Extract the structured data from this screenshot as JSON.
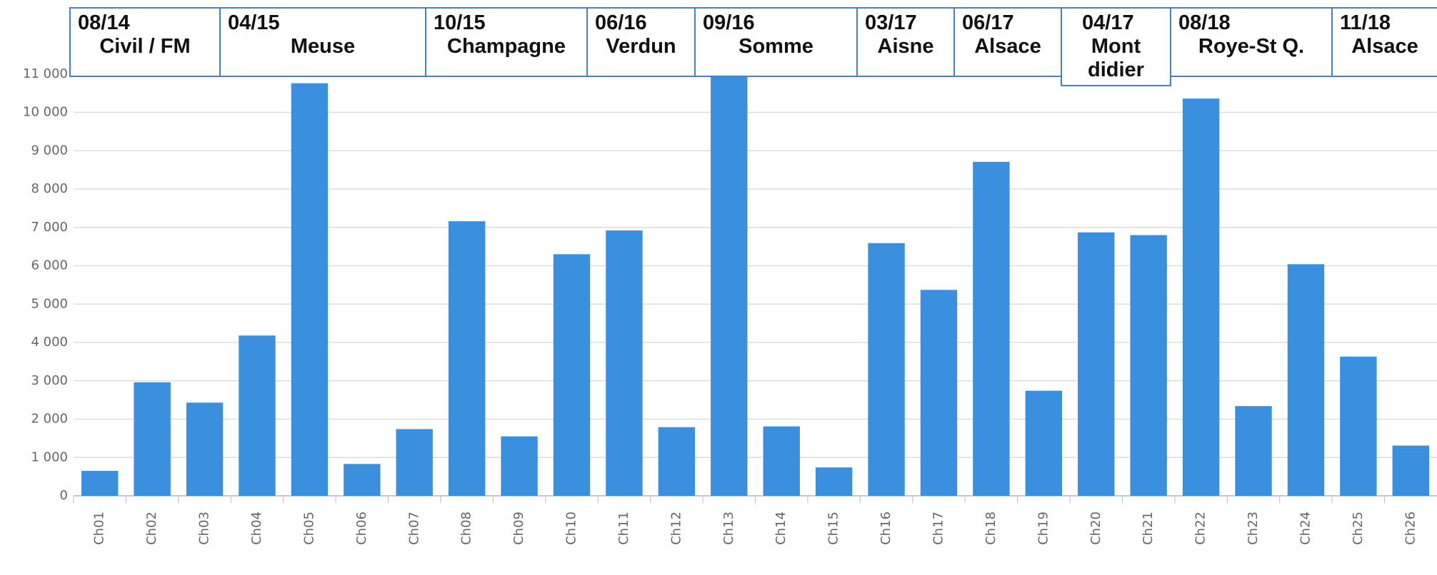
{
  "chart_data": {
    "type": "bar",
    "categories": [
      "Ch01",
      "Ch02",
      "Ch03",
      "Ch04",
      "Ch05",
      "Ch06",
      "Ch07",
      "Ch08",
      "Ch09",
      "Ch10",
      "Ch11",
      "Ch12",
      "Ch13",
      "Ch14",
      "Ch15",
      "Ch16",
      "Ch17",
      "Ch18",
      "Ch19",
      "Ch20",
      "Ch21",
      "Ch22",
      "Ch23",
      "Ch24",
      "Ch25",
      "Ch26"
    ],
    "values": [
      650,
      2960,
      2430,
      4180,
      10760,
      830,
      1740,
      7160,
      1550,
      6300,
      6920,
      1790,
      11480,
      1810,
      740,
      6590,
      5370,
      8710,
      2740,
      6870,
      6800,
      10360,
      2340,
      6040,
      3630,
      1310
    ],
    "color": "#3a8fde",
    "ylim": [
      0,
      12000
    ],
    "yticks": [
      0,
      {
        "value": 1000,
        "label": "1 000"
      },
      {
        "value": 2000,
        "label": "2 000"
      },
      {
        "value": 3000,
        "label": "3 000"
      },
      {
        "value": 4000,
        "label": "4 000"
      },
      {
        "value": 5000,
        "label": "5 000"
      },
      {
        "value": 6000,
        "label": "6 000"
      },
      {
        "value": 7000,
        "label": "7 000"
      },
      {
        "value": 8000,
        "label": "8 000"
      },
      {
        "value": 9000,
        "label": "9 000"
      },
      {
        "value": 10000,
        "label": "10 000"
      },
      {
        "value": 11000,
        "label": "11 000"
      }
    ],
    "grid": true,
    "annotations": [
      {
        "date": "08/14",
        "label": "Civil / FM"
      },
      {
        "date": "04/15",
        "label": "Meuse"
      },
      {
        "date": "10/15",
        "label": "Champagne"
      },
      {
        "date": "06/16",
        "label": "Verdun"
      },
      {
        "date": "09/16",
        "label": "Somme"
      },
      {
        "date": "03/17",
        "label": "Aisne"
      },
      {
        "date": "06/17",
        "label": "Alsace"
      },
      {
        "date": "04/17",
        "label": "Mont didier"
      },
      {
        "date": "08/18",
        "label": "Roye-St Q."
      },
      {
        "date": "11/18",
        "label": "Alsace"
      }
    ]
  }
}
